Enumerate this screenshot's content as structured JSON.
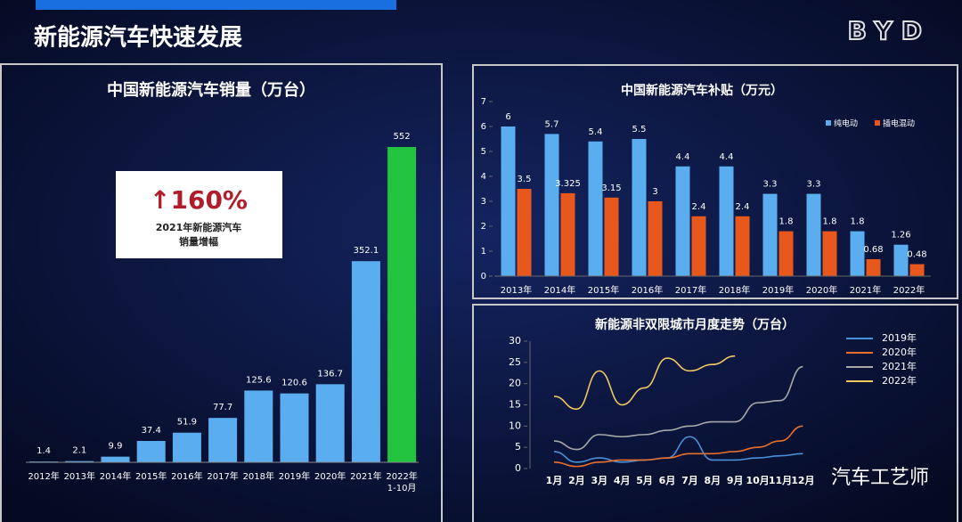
{
  "title": "新能源汽车快速发展",
  "logo": "BYD",
  "watermark": "汽车工艺师",
  "chart_data": [
    {
      "type": "bar",
      "title": "中国新能源汽车销量（万台）",
      "categories": [
        "2012年",
        "2013年",
        "2014年",
        "2015年",
        "2016年",
        "2017年",
        "2018年",
        "2019年",
        "2020年",
        "2021年",
        [
          "2022年",
          "1-10月"
        ]
      ],
      "values": [
        1.4,
        2.1,
        9.9,
        37.4,
        51.9,
        77.7,
        125.6,
        120.6,
        136.7,
        352.1,
        552
      ],
      "colors": [
        "#5aaef0",
        "#5aaef0",
        "#5aaef0",
        "#5aaef0",
        "#5aaef0",
        "#5aaef0",
        "#5aaef0",
        "#5aaef0",
        "#5aaef0",
        "#5aaef0",
        "#22c33e"
      ],
      "annotation": {
        "text": "↑160%",
        "caption": [
          "2021年新能源汽车",
          "销量增幅"
        ]
      }
    },
    {
      "type": "grouped_bar",
      "title": "中国新能源汽车补贴（万元）",
      "categories": [
        "2013年",
        "2014年",
        "2015年",
        "2016年",
        "2017年",
        "2018年",
        "2019年",
        "2020年",
        "2021年",
        "2022年"
      ],
      "series": [
        {
          "name": "纯电动",
          "color": "#5aaef0",
          "values": [
            6,
            5.7,
            5.4,
            5.5,
            4.4,
            4.4,
            3.3,
            3.3,
            1.8,
            1.26
          ]
        },
        {
          "name": "插电混动",
          "color": "#e8581c",
          "values": [
            3.5,
            3.325,
            3.15,
            3,
            2.4,
            2.4,
            1.8,
            1.8,
            0.68,
            0.48
          ]
        }
      ],
      "ylim": [
        0,
        7
      ],
      "yticks": [
        0,
        1,
        2,
        3,
        4,
        5,
        6,
        7
      ],
      "legend": "top-right"
    },
    {
      "type": "line",
      "title": "新能源非双限城市月度走势（万台）",
      "categories": [
        "1月",
        "2月",
        "3月",
        "4月",
        "5月",
        "6月",
        "7月",
        "8月",
        "9月",
        "10月",
        "11月",
        "12月"
      ],
      "series": [
        {
          "name": "2019年",
          "color": "#4a90d9",
          "values": [
            4,
            1.5,
            2.5,
            1.5,
            2,
            2.5,
            7.5,
            2,
            2,
            2.5,
            3,
            3.5
          ]
        },
        {
          "name": "2020年",
          "color": "#e8702a",
          "values": [
            1.5,
            0.5,
            1.5,
            2,
            2,
            2.5,
            3.5,
            3.5,
            4,
            5,
            6.5,
            10
          ]
        },
        {
          "name": "2021年",
          "color": "#a8a8a8",
          "values": [
            6.5,
            4.5,
            8,
            7.5,
            8,
            9,
            10,
            11,
            11,
            15.5,
            16,
            24
          ]
        },
        {
          "name": "2022年",
          "color": "#f0c860",
          "values": [
            17,
            14,
            23,
            15,
            19,
            26,
            23,
            24.5,
            26.5,
            null,
            null,
            null
          ]
        }
      ],
      "ylim": [
        0,
        30
      ],
      "yticks": [
        0,
        5,
        10,
        15,
        20,
        25,
        30
      ],
      "legend": "top-right"
    }
  ]
}
